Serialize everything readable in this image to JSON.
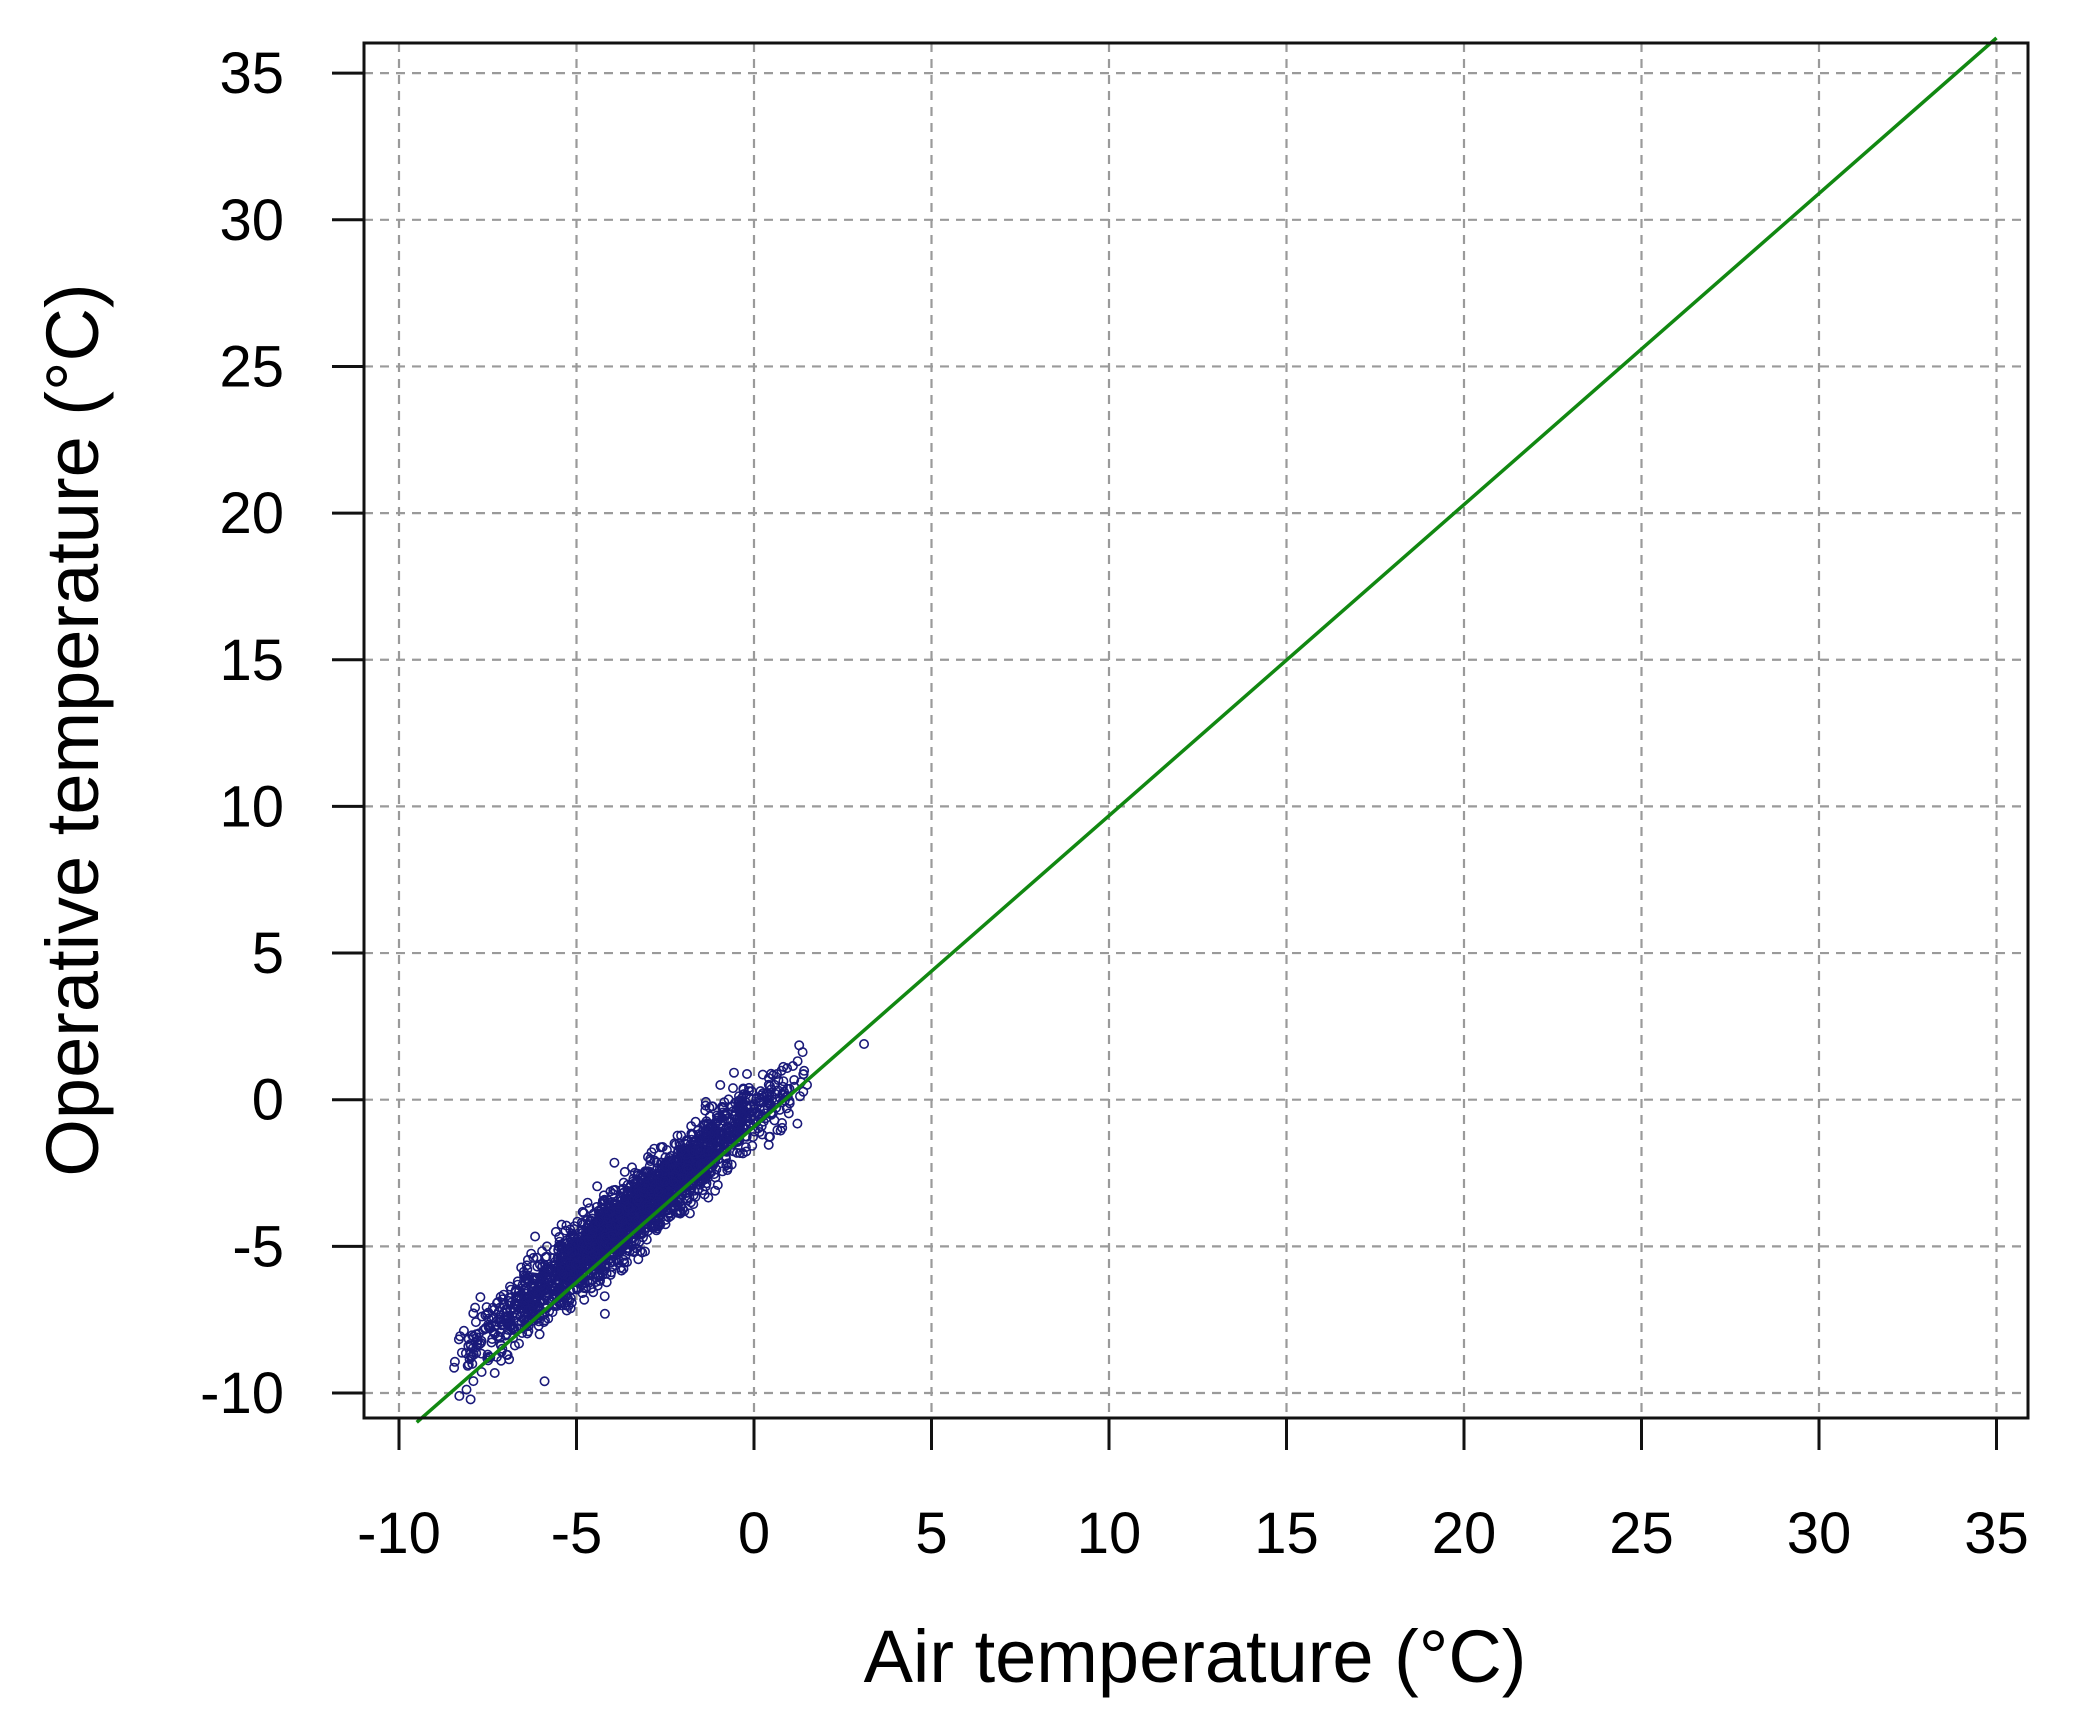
{
  "chart_data": {
    "type": "scatter",
    "title": "",
    "xlabel": "Air temperature (°C)",
    "ylabel": "Operative temperature (°C)",
    "xlim": [
      -11,
      36
    ],
    "ylim": [
      -11,
      36
    ],
    "x_ticks": [
      -10,
      -5,
      0,
      5,
      10,
      15,
      20,
      25,
      30,
      35
    ],
    "y_ticks": [
      -10,
      -5,
      0,
      5,
      10,
      15,
      20,
      25,
      30,
      35
    ],
    "x_tick_labels": [
      "-10",
      "-5",
      "0",
      "5",
      "10",
      "15",
      "20",
      "25",
      "30",
      "35"
    ],
    "y_tick_labels": [
      "-10",
      "-5",
      "0",
      "5",
      "10",
      "15",
      "20",
      "25",
      "30",
      "35"
    ],
    "grid": true,
    "grid_style": "dashed",
    "series": [
      {
        "type": "scatter",
        "color": "#1a1a7a",
        "marker": "open-circle",
        "x_range": [
          -8.5,
          1.5
        ],
        "slope": 1.0,
        "intercept": -0.5,
        "spread": 0.6,
        "outliers": [
          {
            "x": 3.1,
            "y": 1.9
          },
          {
            "x": -8.3,
            "y": -10.1
          },
          {
            "x": -5.9,
            "y": -9.6
          },
          {
            "x": -4.2,
            "y": -7.3
          },
          {
            "x": -1.5,
            "y": -1.7
          }
        ]
      },
      {
        "type": "line",
        "color": "#118811",
        "x": [
          -9.5,
          35
        ],
        "y": [
          -11,
          36.2
        ]
      }
    ]
  }
}
